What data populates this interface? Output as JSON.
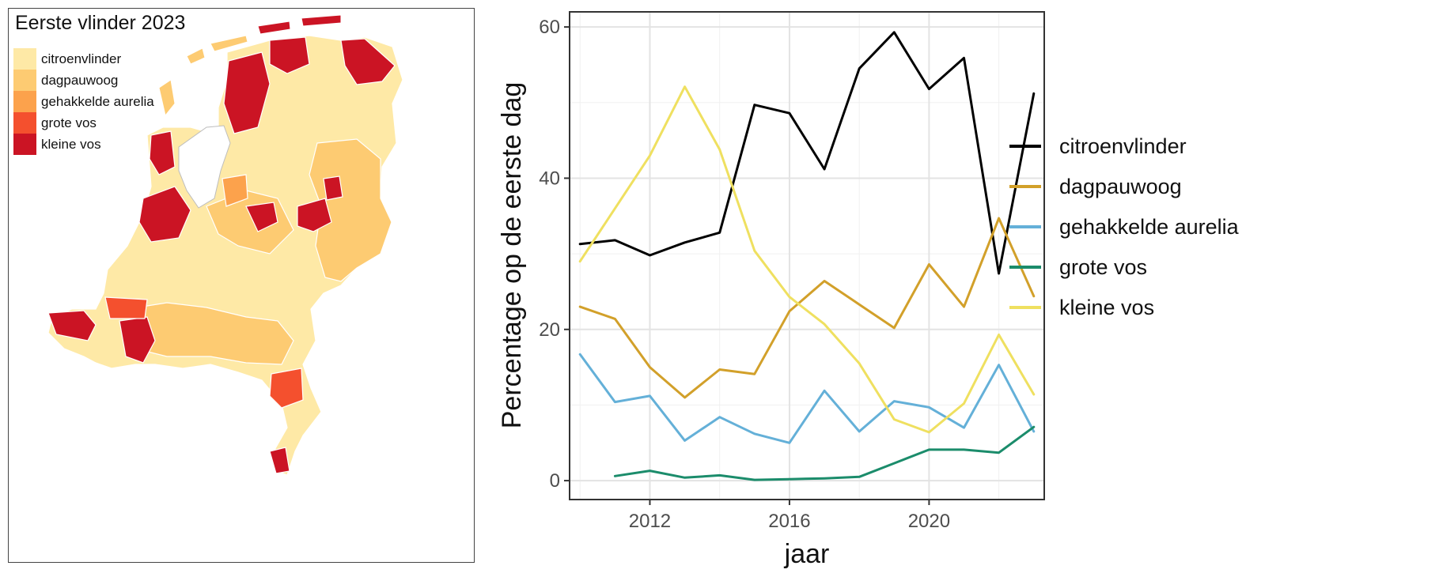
{
  "map": {
    "title": "Eerste vlinder 2023",
    "legend": [
      {
        "label": "citroenvlinder",
        "color": "#FEE9A6"
      },
      {
        "label": "dagpauwoog",
        "color": "#FDCB72"
      },
      {
        "label": "gehakkelde aurelia",
        "color": "#FCA24C"
      },
      {
        "label": "grote vos",
        "color": "#F4502E"
      },
      {
        "label": "kleine vos",
        "color": "#CB1424"
      }
    ]
  },
  "chart_data": {
    "type": "line",
    "title": "",
    "xlabel": "jaar",
    "ylabel": "Percentage op de eerste dag",
    "xlim": [
      2009.7,
      2023.3
    ],
    "ylim": [
      -2.5,
      62
    ],
    "xticks": [
      2012,
      2016,
      2020
    ],
    "yticks": [
      0,
      20,
      40,
      60
    ],
    "xtick_labels": [
      "2012",
      "2016",
      "2020"
    ],
    "ytick_labels": [
      "0",
      "20",
      "40",
      "60"
    ],
    "grid": true,
    "legend_position": "right",
    "series": [
      {
        "name": "citroenvlinder",
        "color": "#000000",
        "x": [
          2010,
          2011,
          2012,
          2013,
          2014,
          2015,
          2016,
          2017,
          2018,
          2019,
          2020,
          2021,
          2022,
          2023
        ],
        "y": [
          31.3,
          31.8,
          29.8,
          31.5,
          32.8,
          49.7,
          48.6,
          41.2,
          54.5,
          59.3,
          51.8,
          55.9,
          27.4,
          51.2
        ]
      },
      {
        "name": "dagpauwoog",
        "color": "#D2A02A",
        "x": [
          2010,
          2011,
          2012,
          2013,
          2014,
          2015,
          2016,
          2017,
          2018,
          2019,
          2020,
          2021,
          2022,
          2023
        ],
        "y": [
          23.0,
          21.4,
          15.0,
          11.0,
          14.7,
          14.1,
          22.4,
          26.4,
          23.3,
          20.2,
          28.6,
          23.0,
          34.7,
          24.4
        ]
      },
      {
        "name": "gehakkelde aurelia",
        "color": "#64B0D8",
        "x": [
          2010,
          2011,
          2012,
          2013,
          2014,
          2015,
          2016,
          2017,
          2018,
          2019,
          2020,
          2021,
          2022,
          2023
        ],
        "y": [
          16.7,
          10.4,
          11.2,
          5.3,
          8.4,
          6.2,
          5.0,
          11.9,
          6.5,
          10.5,
          9.7,
          7.0,
          15.3,
          6.5
        ]
      },
      {
        "name": "grote vos",
        "color": "#1B8C6B",
        "x": [
          2011,
          2012,
          2013,
          2014,
          2015,
          2016,
          2017,
          2018,
          2019,
          2020,
          2021,
          2022,
          2023
        ],
        "y": [
          0.6,
          1.3,
          0.4,
          0.7,
          0.1,
          0.2,
          0.3,
          0.5,
          2.3,
          4.1,
          4.1,
          3.7,
          7.1
        ]
      },
      {
        "name": "kleine vos",
        "color": "#EFE060",
        "x": [
          2010,
          2011,
          2012,
          2013,
          2014,
          2015,
          2016,
          2017,
          2018,
          2019,
          2020,
          2021,
          2022,
          2023
        ],
        "y": [
          29.0,
          36.0,
          43.0,
          52.1,
          43.8,
          30.4,
          24.3,
          20.7,
          15.5,
          8.1,
          6.4,
          10.2,
          19.3,
          11.4
        ]
      }
    ]
  }
}
